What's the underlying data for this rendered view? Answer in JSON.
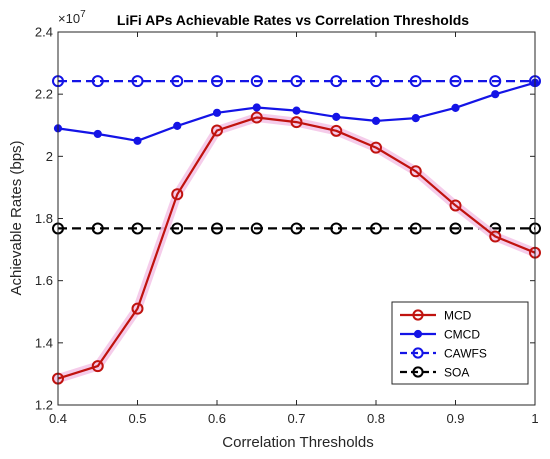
{
  "chart_data": {
    "type": "line",
    "title": "LiFi APs Achievable Rates vs Correlation Thresholds",
    "xlabel": "Correlation Thresholds",
    "ylabel": "Achievable Rates (bps)",
    "y_exponent_label": "×10",
    "y_exponent_power": "7",
    "xlim": [
      0.4,
      1.0
    ],
    "ylim": [
      1.2,
      2.4
    ],
    "x_ticks": [
      0.4,
      0.5,
      0.6,
      0.7,
      0.8,
      0.9,
      1.0
    ],
    "x_tick_labels": [
      "0.4",
      "0.5",
      "0.6",
      "0.7",
      "0.8",
      "0.9",
      "1"
    ],
    "y_ticks": [
      1.2,
      1.4,
      1.6,
      1.8,
      2.0,
      2.2,
      2.4
    ],
    "y_tick_labels": [
      "1.2",
      "1.4",
      "1.6",
      "1.8",
      "2",
      "2.2",
      "2.4"
    ],
    "grid": false,
    "legend_position": "bottom-right",
    "x": [
      0.4,
      0.45,
      0.5,
      0.55,
      0.6,
      0.65,
      0.7,
      0.75,
      0.8,
      0.85,
      0.9,
      0.95,
      1.0
    ],
    "series": [
      {
        "name": "MCD",
        "color": "#c0130f",
        "marker": "circle-open",
        "line_style": "solid",
        "highlight": "#f4c6e8",
        "values": [
          1.285,
          1.325,
          1.51,
          1.878,
          2.083,
          2.125,
          2.11,
          2.082,
          2.028,
          1.952,
          1.842,
          1.742,
          1.69
        ]
      },
      {
        "name": "CMCD",
        "color": "#1414e6",
        "marker": "dot-filled",
        "line_style": "solid",
        "values": [
          2.09,
          2.072,
          2.05,
          2.098,
          2.14,
          2.157,
          2.147,
          2.127,
          2.114,
          2.123,
          2.156,
          2.2,
          2.237
        ]
      },
      {
        "name": "CAWFS",
        "color": "#1414e6",
        "marker": "circle-open",
        "line_style": "dashed",
        "values": [
          2.242,
          2.242,
          2.242,
          2.242,
          2.242,
          2.242,
          2.242,
          2.242,
          2.242,
          2.242,
          2.242,
          2.242,
          2.242
        ]
      },
      {
        "name": "SOA",
        "color": "#000000",
        "marker": "circle-open",
        "line_style": "dashed",
        "values": [
          1.768,
          1.768,
          1.768,
          1.768,
          1.768,
          1.768,
          1.768,
          1.768,
          1.768,
          1.768,
          1.768,
          1.768,
          1.768
        ]
      }
    ]
  }
}
